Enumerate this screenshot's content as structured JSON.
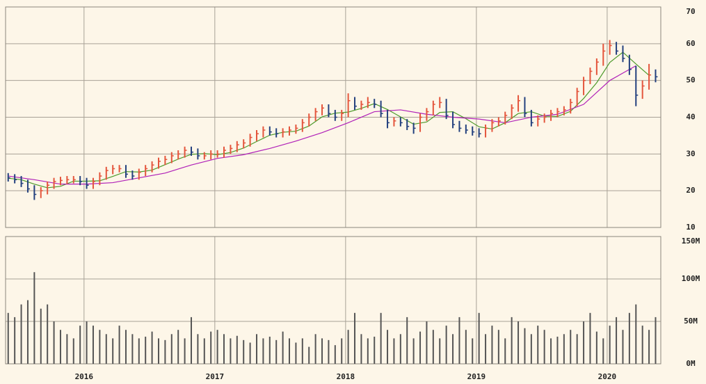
{
  "chart_data": [
    {
      "type": "ohlc",
      "x": [
        2015.42,
        2015.47,
        2015.52,
        2015.57,
        2015.62,
        2015.67,
        2015.72,
        2015.77,
        2015.82,
        2015.87,
        2015.92,
        2015.97,
        2016.02,
        2016.07,
        2016.12,
        2016.17,
        2016.22,
        2016.27,
        2016.32,
        2016.37,
        2016.42,
        2016.47,
        2016.52,
        2016.57,
        2016.62,
        2016.67,
        2016.72,
        2016.77,
        2016.82,
        2016.87,
        2016.92,
        2016.97,
        2017.02,
        2017.07,
        2017.12,
        2017.17,
        2017.22,
        2017.27,
        2017.32,
        2017.37,
        2017.42,
        2017.47,
        2017.52,
        2017.57,
        2017.62,
        2017.67,
        2017.72,
        2017.77,
        2017.82,
        2017.87,
        2017.92,
        2017.97,
        2018.02,
        2018.07,
        2018.12,
        2018.17,
        2018.22,
        2018.27,
        2018.32,
        2018.37,
        2018.42,
        2018.47,
        2018.52,
        2018.57,
        2018.62,
        2018.67,
        2018.72,
        2018.77,
        2018.82,
        2018.87,
        2018.92,
        2018.97,
        2019.02,
        2019.07,
        2019.12,
        2019.17,
        2019.22,
        2019.27,
        2019.32,
        2019.37,
        2019.42,
        2019.47,
        2019.52,
        2019.57,
        2019.62,
        2019.67,
        2019.72,
        2019.77,
        2019.82,
        2019.87,
        2019.92,
        2019.97,
        2020.02,
        2020.07,
        2020.12,
        2020.17,
        2020.22,
        2020.27,
        2020.32,
        2020.37
      ],
      "high": [
        24.8,
        24.5,
        24,
        23,
        21.5,
        21,
        22.5,
        23.5,
        23.8,
        24,
        24,
        24,
        23.5,
        23.5,
        25,
        26.5,
        27,
        27,
        27,
        25.5,
        26,
        27,
        28,
        29,
        29.5,
        30.5,
        31,
        32,
        32,
        31.5,
        30.5,
        31,
        31,
        32,
        32.5,
        33.5,
        34,
        35.5,
        36.5,
        37.5,
        37.5,
        37,
        37,
        37.5,
        38,
        39.5,
        41,
        42.5,
        43.5,
        43.5,
        42,
        42,
        46.5,
        45.5,
        44.5,
        45.5,
        45,
        44.5,
        42,
        40,
        40,
        39.5,
        38.5,
        41,
        42.5,
        44.5,
        45.5,
        45,
        41.5,
        39,
        38,
        37.5,
        37,
        38,
        39.5,
        40,
        41.5,
        43.5,
        46,
        45.5,
        42,
        40.5,
        41,
        42,
        42.5,
        43,
        45,
        48,
        51,
        53.5,
        56,
        60,
        61,
        60.5,
        59.5,
        57,
        54,
        50,
        54.5,
        53
      ],
      "low": [
        22.5,
        22,
        21,
        19.5,
        17.5,
        18,
        19,
        20.5,
        21.5,
        21.8,
        22,
        21.5,
        20.5,
        20.5,
        21.5,
        23,
        24.5,
        25,
        23.5,
        23,
        23,
        24,
        25,
        26,
        27,
        27.5,
        28.5,
        29,
        29.5,
        28.5,
        28.5,
        28.5,
        29,
        29,
        30,
        30.5,
        31.5,
        32,
        33.5,
        34.5,
        35,
        34.5,
        34.5,
        35,
        35.5,
        36,
        37.5,
        39,
        40.5,
        40,
        39,
        39,
        40,
        42,
        42,
        42.5,
        42.5,
        40,
        37,
        37.5,
        37.5,
        36.5,
        35.5,
        36,
        39,
        40.5,
        42.5,
        39.5,
        37,
        36,
        35.5,
        35,
        34.5,
        34.5,
        36,
        37.5,
        38,
        39.5,
        41.5,
        40,
        37.5,
        37.5,
        38.5,
        39,
        40,
        40.5,
        41,
        43,
        46,
        49,
        51.5,
        54,
        57,
        57,
        55,
        51.5,
        43,
        45,
        47.5,
        49.5
      ],
      "close": [
        23.5,
        23,
        22,
        20.5,
        19,
        20,
        21.5,
        22.5,
        22.8,
        23,
        23,
        22.5,
        21.5,
        22.5,
        24,
        25.5,
        26,
        26,
        24.5,
        24,
        25,
        26,
        27,
        28,
        28.5,
        29.5,
        30,
        31,
        30.5,
        29.5,
        29.5,
        30,
        30,
        31,
        31.5,
        32.5,
        33,
        34.5,
        35.5,
        36.5,
        36,
        35.5,
        36,
        36.5,
        37,
        38.5,
        40,
        41.5,
        42.5,
        41,
        40,
        41,
        44.5,
        43,
        43.5,
        44,
        43.5,
        41,
        38.5,
        39,
        38.5,
        37.5,
        37,
        40,
        41.5,
        43.5,
        44,
        40.5,
        38,
        37,
        36.5,
        36,
        35.5,
        37,
        38.5,
        39,
        40.5,
        42.5,
        44.5,
        41,
        38.5,
        39.5,
        40,
        41,
        41.5,
        42,
        44,
        47,
        50,
        52.5,
        55,
        58,
        59.5,
        58,
        56,
        53,
        46,
        48.5,
        51.5,
        51
      ],
      "up_color": "#e4553c",
      "down_color": "#23407e",
      "lines": [
        {
          "color": "#4c9a2a",
          "x": [
            2015.42,
            2015.52,
            2015.62,
            2015.72,
            2015.82,
            2015.92,
            2016.02,
            2016.12,
            2016.22,
            2016.32,
            2016.42,
            2016.52,
            2016.62,
            2016.72,
            2016.82,
            2016.92,
            2017.02,
            2017.12,
            2017.22,
            2017.32,
            2017.42,
            2017.52,
            2017.62,
            2017.72,
            2017.82,
            2017.92,
            2018.02,
            2018.12,
            2018.22,
            2018.32,
            2018.42,
            2018.52,
            2018.62,
            2018.72,
            2018.82,
            2018.92,
            2019.02,
            2019.12,
            2019.22,
            2019.32,
            2019.42,
            2019.52,
            2019.62,
            2019.72,
            2019.82,
            2019.92,
            2020.02,
            2020.12,
            2020.22,
            2020.32
          ],
          "values": [
            23.4,
            23,
            21.8,
            20.8,
            21.2,
            22.6,
            22.6,
            22.7,
            23.9,
            25.2,
            25.1,
            25.6,
            27.1,
            28.6,
            29.9,
            30.1,
            29.8,
            30.4,
            31.6,
            33.4,
            35.1,
            35.9,
            36.2,
            37.6,
            40.1,
            41.1,
            41.4,
            42.4,
            43.7,
            42.1,
            40.1,
            38.1,
            38.7,
            41.3,
            41.5,
            39.6,
            37.4,
            36.8,
            38.5,
            41,
            41.5,
            40.3,
            40.2,
            41.6,
            45.1,
            49.4,
            54.9,
            57.7,
            54.5,
            51.4
          ]
        },
        {
          "color": "#b020b8",
          "x": [
            2015.42,
            2015.62,
            2015.82,
            2016.02,
            2016.22,
            2016.42,
            2016.62,
            2016.82,
            2017.02,
            2017.22,
            2017.42,
            2017.62,
            2017.82,
            2018.02,
            2018.22,
            2018.42,
            2018.62,
            2018.82,
            2019.02,
            2019.22,
            2019.42,
            2019.62,
            2019.82,
            2020.02,
            2020.22
          ],
          "values": [
            24,
            23,
            21.8,
            21.8,
            22.2,
            23.5,
            24.8,
            27,
            28.8,
            29.8,
            31.5,
            33.5,
            35.8,
            38.5,
            41.5,
            42,
            40.8,
            40,
            39.5,
            38.5,
            40,
            40.8,
            43.5,
            50,
            54
          ]
        }
      ],
      "xlim": [
        2015.4,
        2020.41
      ],
      "ylim": [
        10,
        70
      ],
      "yticks": [
        10,
        20,
        30,
        40,
        50,
        60,
        70
      ],
      "grid": true
    },
    {
      "type": "bar",
      "x": [
        2015.42,
        2015.47,
        2015.52,
        2015.57,
        2015.62,
        2015.67,
        2015.72,
        2015.77,
        2015.82,
        2015.87,
        2015.92,
        2015.97,
        2016.02,
        2016.07,
        2016.12,
        2016.17,
        2016.22,
        2016.27,
        2016.32,
        2016.37,
        2016.42,
        2016.47,
        2016.52,
        2016.57,
        2016.62,
        2016.67,
        2016.72,
        2016.77,
        2016.82,
        2016.87,
        2016.92,
        2016.97,
        2017.02,
        2017.07,
        2017.12,
        2017.17,
        2017.22,
        2017.27,
        2017.32,
        2017.37,
        2017.42,
        2017.47,
        2017.52,
        2017.57,
        2017.62,
        2017.67,
        2017.72,
        2017.77,
        2017.82,
        2017.87,
        2017.92,
        2017.97,
        2018.02,
        2018.07,
        2018.12,
        2018.17,
        2018.22,
        2018.27,
        2018.32,
        2018.37,
        2018.42,
        2018.47,
        2018.52,
        2018.57,
        2018.62,
        2018.67,
        2018.72,
        2018.77,
        2018.82,
        2018.87,
        2018.92,
        2018.97,
        2019.02,
        2019.07,
        2019.12,
        2019.17,
        2019.22,
        2019.27,
        2019.32,
        2019.37,
        2019.42,
        2019.47,
        2019.52,
        2019.57,
        2019.62,
        2019.67,
        2019.72,
        2019.77,
        2019.82,
        2019.87,
        2019.92,
        2019.97,
        2020.02,
        2020.07,
        2020.12,
        2020.17,
        2020.22,
        2020.27,
        2020.32,
        2020.37
      ],
      "values": [
        60000000,
        55000000,
        70000000,
        75000000,
        108000000,
        65000000,
        70000000,
        50000000,
        40000000,
        35000000,
        30000000,
        45000000,
        50000000,
        45000000,
        40000000,
        35000000,
        30000000,
        45000000,
        40000000,
        35000000,
        30000000,
        32000000,
        38000000,
        30000000,
        28000000,
        35000000,
        40000000,
        30000000,
        55000000,
        35000000,
        30000000,
        38000000,
        40000000,
        35000000,
        30000000,
        33000000,
        28000000,
        25000000,
        35000000,
        30000000,
        32000000,
        28000000,
        38000000,
        30000000,
        25000000,
        30000000,
        20000000,
        35000000,
        30000000,
        28000000,
        22000000,
        30000000,
        40000000,
        60000000,
        35000000,
        30000000,
        32000000,
        60000000,
        40000000,
        30000000,
        35000000,
        55000000,
        30000000,
        38000000,
        50000000,
        40000000,
        30000000,
        45000000,
        35000000,
        55000000,
        40000000,
        30000000,
        60000000,
        35000000,
        45000000,
        40000000,
        30000000,
        55000000,
        50000000,
        42000000,
        35000000,
        45000000,
        40000000,
        30000000,
        32000000,
        35000000,
        40000000,
        35000000,
        50000000,
        60000000,
        38000000,
        30000000,
        45000000,
        55000000,
        40000000,
        60000000,
        70000000,
        45000000,
        40000000,
        55000000
      ],
      "color": "#555555",
      "xlim": [
        2015.4,
        2020.41
      ],
      "xticks": [
        2016,
        2017,
        2018,
        2019,
        2020
      ],
      "ylim": [
        0,
        150000000
      ],
      "yticks": [
        {
          "value": 0,
          "label": "0M"
        },
        {
          "value": 50000000,
          "label": "50M"
        },
        {
          "value": 100000000,
          "label": "100M"
        },
        {
          "value": 150000000,
          "label": "150M"
        }
      ],
      "grid": true
    }
  ]
}
